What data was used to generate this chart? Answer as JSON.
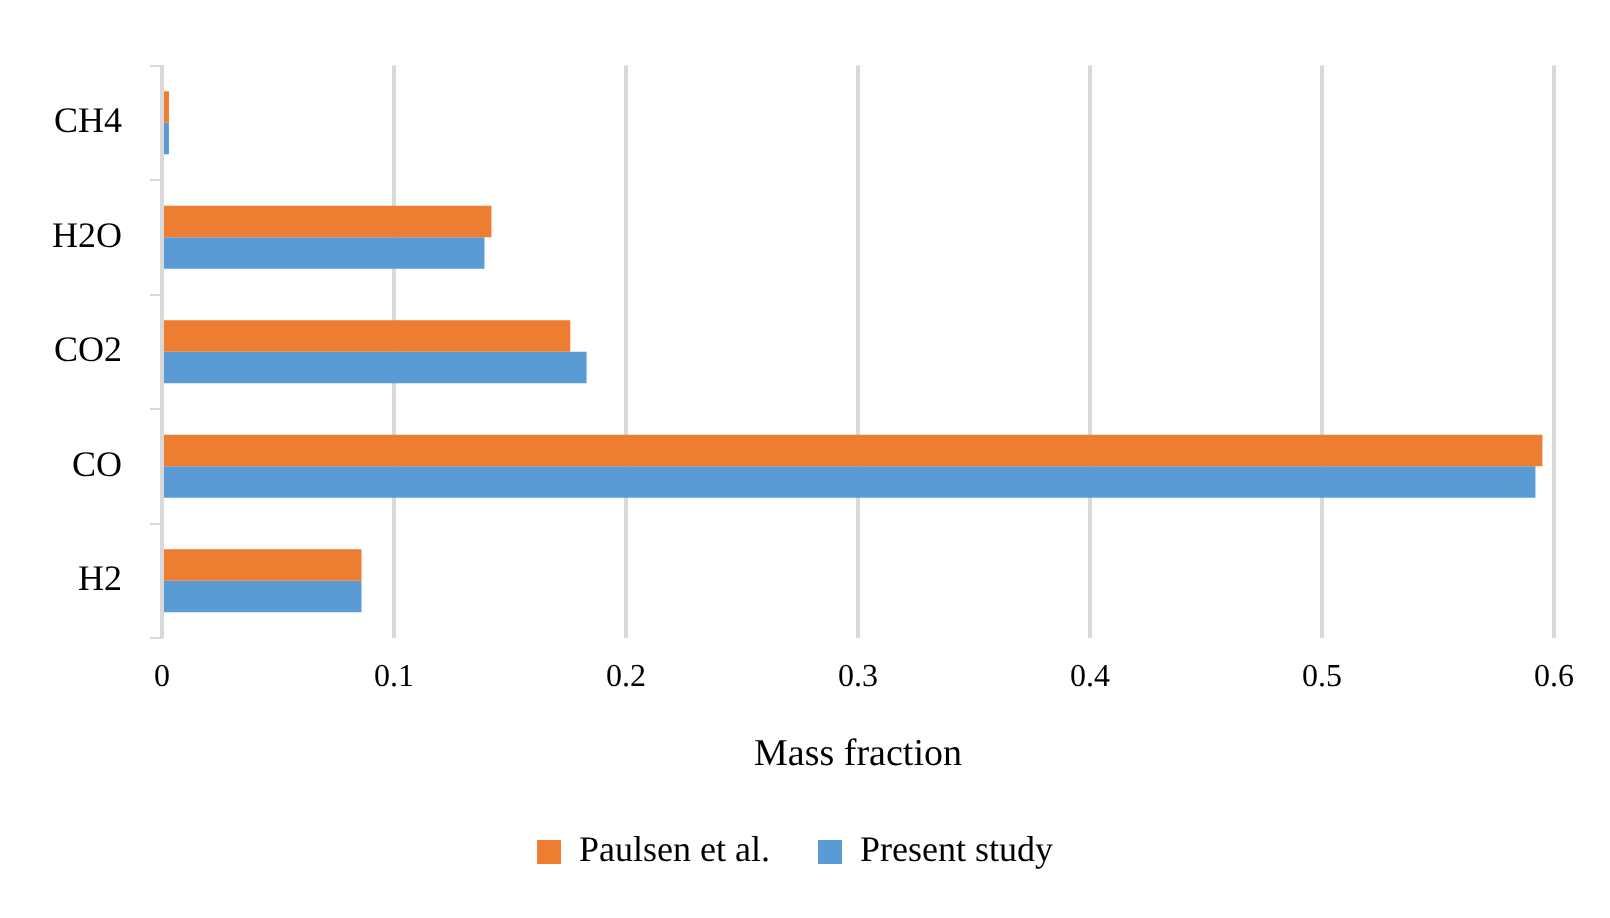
{
  "chart_data": {
    "type": "bar",
    "orientation": "horizontal",
    "xlabel": "Mass fraction",
    "categories": [
      "CH4",
      "H2O",
      "CO2",
      "CO",
      "H2"
    ],
    "series": [
      {
        "name": "Paulsen et al.",
        "color": "#ed7d31",
        "values": [
          0.003,
          0.142,
          0.176,
          0.595,
          0.086
        ]
      },
      {
        "name": "Present study",
        "color": "#5b9bd5",
        "values": [
          0.003,
          0.139,
          0.183,
          0.592,
          0.086
        ]
      }
    ],
    "xlim": [
      0,
      0.6
    ],
    "xticks": [
      0,
      0.1,
      0.2,
      0.3,
      0.4,
      0.5,
      0.6
    ],
    "grid": "x",
    "legend": "bottom"
  }
}
